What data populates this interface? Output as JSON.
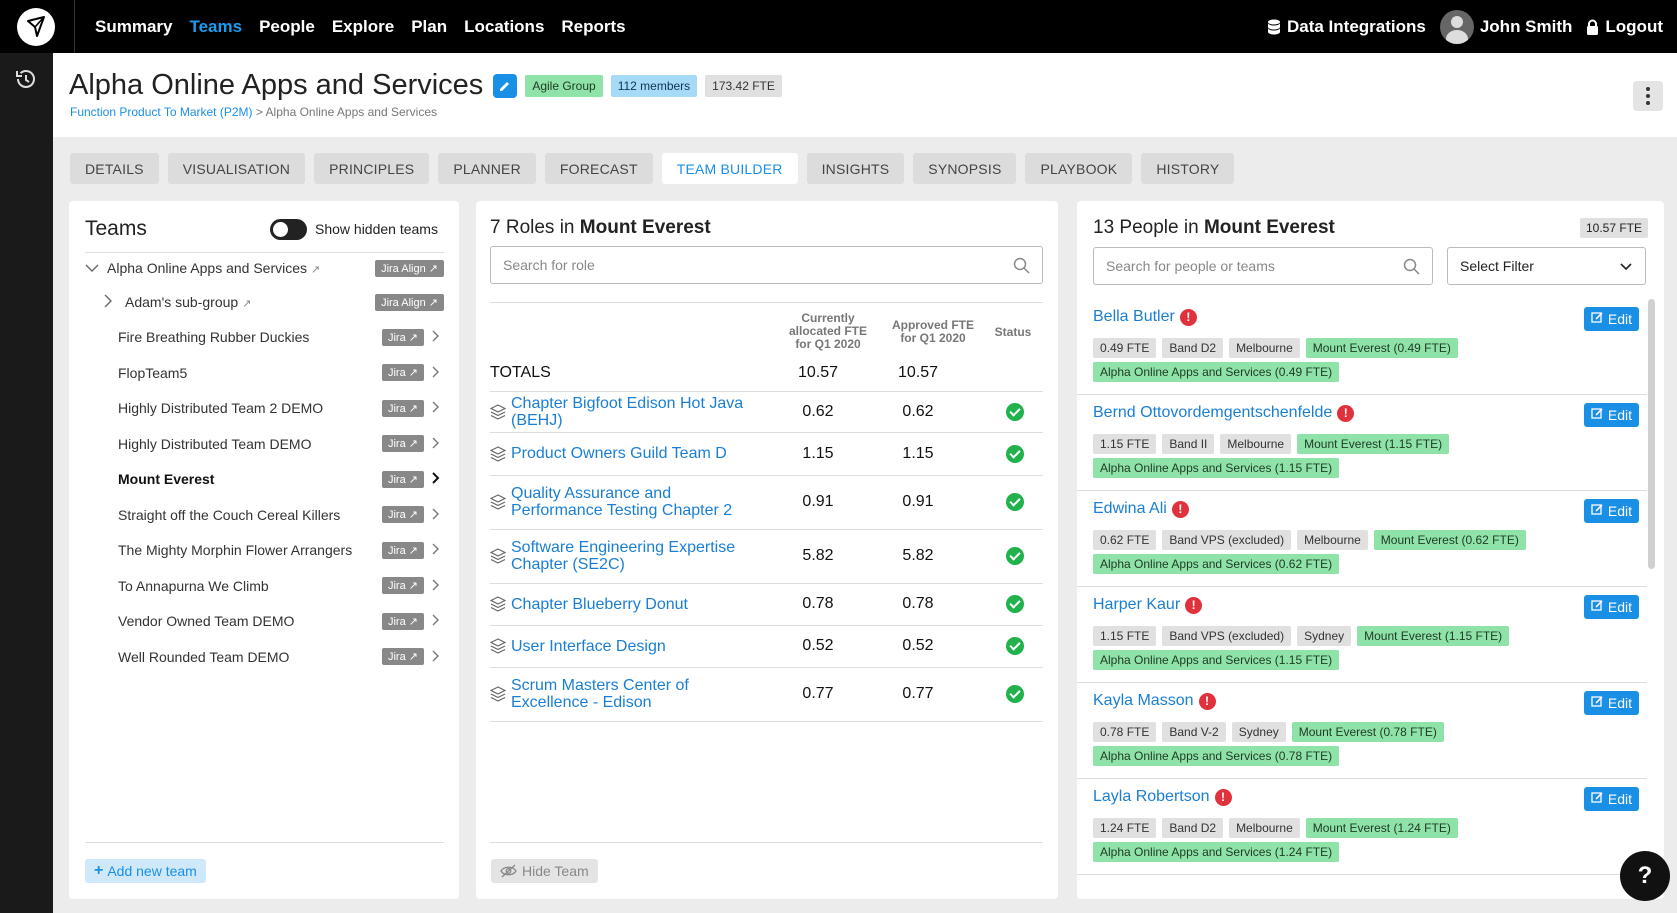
{
  "nav": {
    "items": [
      "Summary",
      "Teams",
      "People",
      "Explore",
      "Plan",
      "Locations",
      "Reports"
    ],
    "active": "Teams",
    "data_integrations": "Data Integrations",
    "user": "John Smith",
    "logout": "Logout"
  },
  "header": {
    "title": "Alpha Online Apps and Services",
    "badges": {
      "group": "Agile Group",
      "members": "112 members",
      "fte": "173.42 FTE"
    },
    "breadcrumb": {
      "parent": "Function Product To Market (P2M)",
      "separator": ">",
      "current": "Alpha Online Apps and Services"
    }
  },
  "tabs": [
    "DETAILS",
    "VISUALISATION",
    "PRINCIPLES",
    "PLANNER",
    "FORECAST",
    "TEAM BUILDER",
    "INSIGHTS",
    "SYNOPSIS",
    "PLAYBOOK",
    "HISTORY"
  ],
  "active_tab": "TEAM BUILDER",
  "teams": {
    "title": "Teams",
    "toggle_label": "Show hidden teams",
    "toggle_on": false,
    "root": {
      "name": "Alpha Online Apps and Services",
      "tag": "Jira Align"
    },
    "subgroup": {
      "name": "Adam's sub-group",
      "tag": "Jira Align"
    },
    "items": [
      {
        "name": "Fire Breathing Rubber Duckies",
        "tag": "Jira"
      },
      {
        "name": "FlopTeam5",
        "tag": "Jira"
      },
      {
        "name": "Highly Distributed Team 2 DEMO",
        "tag": "Jira"
      },
      {
        "name": "Highly Distributed Team DEMO",
        "tag": "Jira"
      },
      {
        "name": "Mount Everest",
        "tag": "Jira"
      },
      {
        "name": "Straight off the Couch Cereal Killers",
        "tag": "Jira"
      },
      {
        "name": "The Mighty Morphin Flower Arrangers",
        "tag": "Jira"
      },
      {
        "name": "To Annapurna We Climb",
        "tag": "Jira"
      },
      {
        "name": "Vendor Owned Team DEMO",
        "tag": "Jira"
      },
      {
        "name": "Well Rounded Team DEMO",
        "tag": "Jira"
      }
    ],
    "selected": "Mount Everest",
    "add_button": "Add new team"
  },
  "roles": {
    "title_prefix": "7 Roles in",
    "title_team": "Mount Everest",
    "search_placeholder": "Search for role",
    "col_current": "Currently allocated FTE for Q1 2020",
    "col_approved": "Approved FTE for Q1 2020",
    "col_status": "Status",
    "totals_label": "TOTALS",
    "totals_current": "10.57",
    "totals_approved": "10.57",
    "rows": [
      {
        "name": "Chapter Bigfoot Edison Hot Java (BEHJ)",
        "current": "0.62",
        "approved": "0.62"
      },
      {
        "name": "Product Owners Guild Team D",
        "current": "1.15",
        "approved": "1.15"
      },
      {
        "name": "Quality Assurance and Performance Testing Chapter 2",
        "current": "0.91",
        "approved": "0.91"
      },
      {
        "name": "Software Engineering Expertise Chapter (SE2C)",
        "current": "5.82",
        "approved": "5.82"
      },
      {
        "name": "Chapter Blueberry Donut",
        "current": "0.78",
        "approved": "0.78"
      },
      {
        "name": "User Interface Design",
        "current": "0.52",
        "approved": "0.52"
      },
      {
        "name": "Scrum Masters Center of Excellence - Edison",
        "current": "0.77",
        "approved": "0.77"
      }
    ],
    "hide_button": "Hide Team"
  },
  "people": {
    "title_prefix": "13 People in",
    "title_team": "Mount Everest",
    "fte": "10.57 FTE",
    "search_placeholder": "Search for people or teams",
    "filter_label": "Select Filter",
    "edit_label": "Edit",
    "warn_glyph": "!",
    "list": [
      {
        "name": "Bella Butler",
        "fte": "0.49 FTE",
        "band": "Band D2",
        "location": "Melbourne",
        "team": "Mount Everest (0.49 FTE)",
        "group": "Alpha Online Apps and Services (0.49 FTE)"
      },
      {
        "name": "Bernd Ottovordemgentschenfelde",
        "fte": "1.15 FTE",
        "band": "Band II",
        "location": "Melbourne",
        "team": "Mount Everest (1.15 FTE)",
        "group": "Alpha Online Apps and Services (1.15 FTE)"
      },
      {
        "name": "Edwina Ali",
        "fte": "0.62 FTE",
        "band": "Band VPS (excluded)",
        "location": "Melbourne",
        "team": "Mount Everest (0.62 FTE)",
        "group": "Alpha Online Apps and Services (0.62 FTE)"
      },
      {
        "name": "Harper Kaur",
        "fte": "1.15 FTE",
        "band": "Band VPS (excluded)",
        "location": "Sydney",
        "team": "Mount Everest (1.15 FTE)",
        "group": "Alpha Online Apps and Services (1.15 FTE)"
      },
      {
        "name": "Kayla Masson",
        "fte": "0.78 FTE",
        "band": "Band V-2",
        "location": "Sydney",
        "team": "Mount Everest (0.78 FTE)",
        "group": "Alpha Online Apps and Services (0.78 FTE)"
      },
      {
        "name": "Layla Robertson",
        "fte": "1.24 FTE",
        "band": "Band D2",
        "location": "Melbourne",
        "team": "Mount Everest (1.24 FTE)",
        "group": "Alpha Online Apps and Services (1.24 FTE)"
      }
    ]
  },
  "help": "?"
}
